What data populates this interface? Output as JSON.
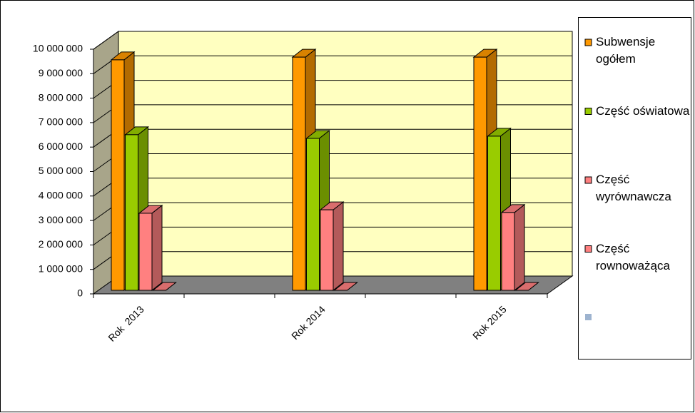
{
  "chart_data": {
    "type": "bar3d",
    "categories": [
      "Rok  2013",
      "Rok 2014",
      "Rok 2015"
    ],
    "series": [
      {
        "name": "Subwensje ogółem",
        "color": "#ff9900",
        "values": [
          9420000,
          9530000,
          9530000
        ]
      },
      {
        "name": "Część oświatowa",
        "color": "#99cc00",
        "values": [
          6360000,
          6210000,
          6300000
        ]
      },
      {
        "name": "Część wyrównawcza",
        "color": "#ff8080",
        "values": [
          3150000,
          3290000,
          3180000
        ]
      },
      {
        "name": "Część rownoważąca",
        "color": "#ff8080",
        "values": [
          0,
          0,
          0
        ]
      }
    ],
    "ylim": [
      0,
      10000000
    ],
    "yticks": [
      0,
      {
        "value": 1000000,
        "label": "1 000 000"
      },
      {
        "value": 2000000,
        "label": "2 000 000"
      },
      {
        "value": 3000000,
        "label": "3 000 000"
      },
      {
        "value": 4000000,
        "label": "4 000 000"
      },
      {
        "value": 5000000,
        "label": "5 000 000"
      },
      {
        "value": 6000000,
        "label": "6 000 000"
      },
      {
        "value": 7000000,
        "label": "7 000 000"
      },
      {
        "value": 8000000,
        "label": "8 000 000"
      },
      {
        "value": 9000000,
        "label": "9 000 000"
      },
      {
        "value": 10000000,
        "label": "10 000 000"
      }
    ],
    "grid": true
  }
}
